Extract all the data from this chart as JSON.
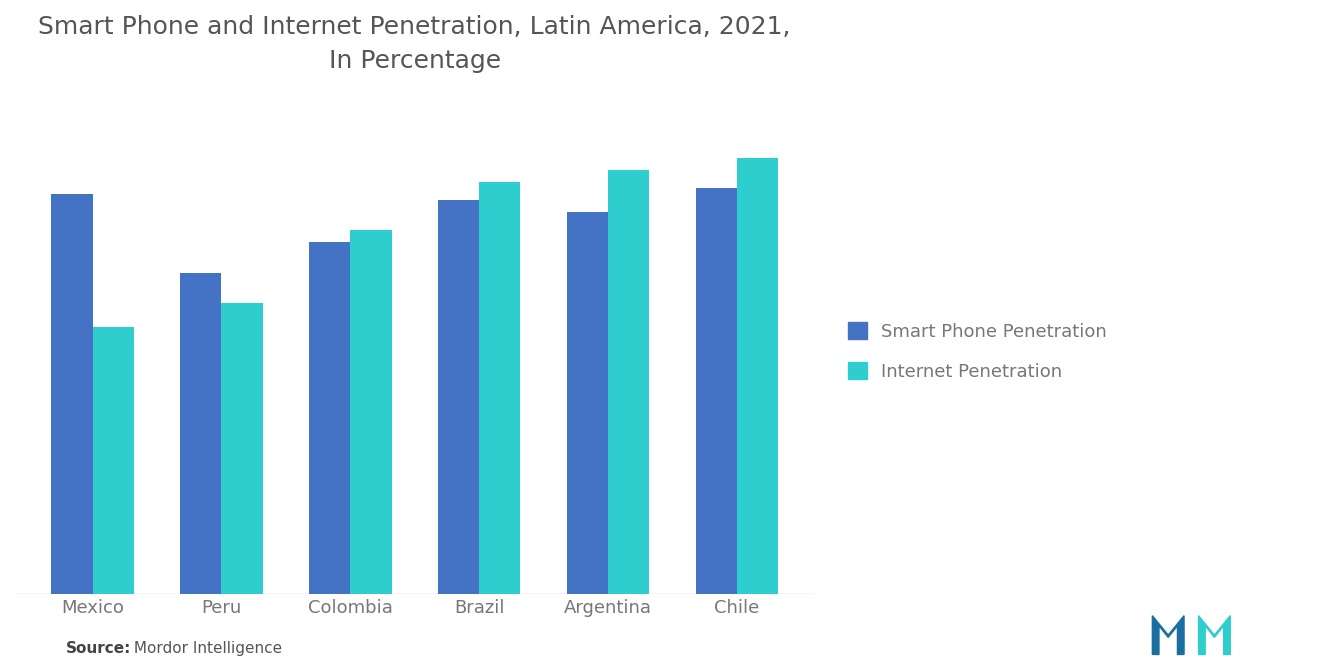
{
  "title": "Smart Phone and Internet Penetration, Latin America, 2021,\nIn Percentage",
  "categories": [
    "Mexico",
    "Peru",
    "Colombia",
    "Brazil",
    "Argentina",
    "Chile"
  ],
  "smartphone_penetration": [
    66,
    53,
    58,
    65,
    63,
    67
  ],
  "internet_penetration": [
    44,
    48,
    60,
    68,
    70,
    72
  ],
  "bar_color_smartphone": "#4472C4",
  "bar_color_internet": "#2ECECE",
  "legend_labels": [
    "Smart Phone Penetration",
    "Internet Penetration"
  ],
  "background_color": "#FFFFFF",
  "bar_width": 0.32,
  "ylim": [
    0,
    80
  ],
  "source_bold": "Source:",
  "source_text": " Mordor Intelligence",
  "title_fontsize": 18,
  "label_fontsize": 13,
  "legend_fontsize": 13,
  "title_color": "#555555",
  "tick_color": "#777777"
}
